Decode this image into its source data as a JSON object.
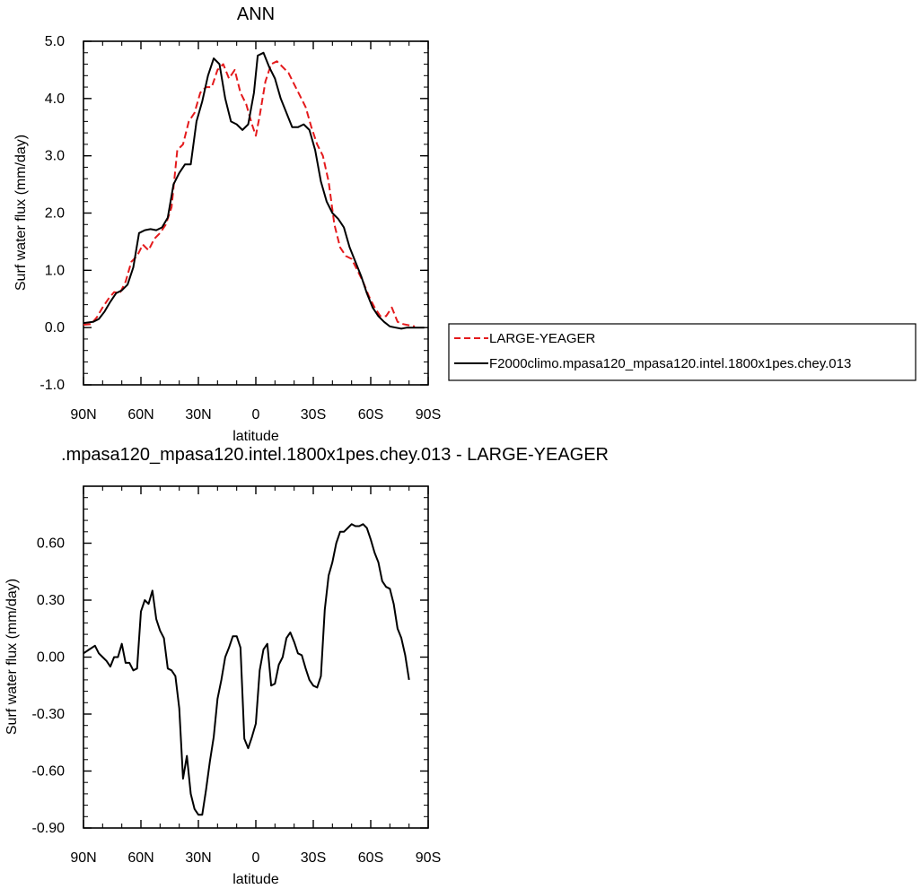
{
  "chart_data": [
    {
      "type": "line",
      "title": "ANN",
      "xlabel": "latitude",
      "ylabel": "Surf water flux (mm/day)",
      "xlim": [
        90,
        -90
      ],
      "ylim": [
        -1.0,
        5.0
      ],
      "x_ticks": [
        90,
        60,
        30,
        0,
        -30,
        -60,
        -90
      ],
      "x_tick_labels": [
        "90N",
        "60N",
        "30N",
        "0",
        "30S",
        "60S",
        "90S"
      ],
      "y_ticks": [
        -1.0,
        0.0,
        1.0,
        2.0,
        3.0,
        4.0,
        5.0
      ],
      "y_tick_labels": [
        "-1.0",
        "0.0",
        "1.0",
        "2.0",
        "3.0",
        "4.0",
        "5.0"
      ],
      "legend_position": "right",
      "series": [
        {
          "name": "LARGE-YEAGER",
          "color": "#e41a1c",
          "dash": "dashed",
          "x": [
            90,
            86,
            83,
            80,
            77,
            74,
            71,
            68,
            65,
            62,
            59,
            56,
            53,
            50,
            47,
            44,
            41,
            38,
            35,
            32,
            29,
            26,
            23,
            20,
            17,
            14,
            11,
            8,
            5,
            2,
            0,
            -2,
            -5,
            -8,
            -11,
            -14,
            -17,
            -20,
            -23,
            -26,
            -29,
            -32,
            -35,
            -38,
            -41,
            -44,
            -47,
            -50,
            -53,
            -56,
            -59,
            -62,
            -65,
            -68,
            -71,
            -74,
            -77,
            -80,
            -83
          ],
          "y": [
            0.05,
            0.06,
            0.18,
            0.35,
            0.5,
            0.62,
            0.6,
            0.8,
            1.15,
            1.25,
            1.45,
            1.35,
            1.55,
            1.65,
            1.8,
            2.1,
            3.1,
            3.2,
            3.6,
            3.75,
            4.1,
            4.2,
            4.2,
            4.5,
            4.6,
            4.35,
            4.5,
            4.1,
            3.9,
            3.55,
            3.35,
            3.7,
            4.3,
            4.6,
            4.65,
            4.55,
            4.45,
            4.25,
            4.05,
            3.85,
            3.5,
            3.2,
            3.0,
            2.55,
            1.8,
            1.4,
            1.25,
            1.2,
            1.0,
            0.8,
            0.55,
            0.35,
            0.2,
            0.2,
            0.35,
            0.1,
            0.06,
            0.04,
            0.02
          ]
        },
        {
          "name": "F2000climo.mpasa120_mpasa120.intel.1800x1pes.chey.013",
          "color": "#000000",
          "dash": "solid",
          "x": [
            90,
            85,
            82,
            79,
            76,
            73,
            70,
            67,
            64,
            61,
            58,
            55,
            52,
            49,
            46,
            43,
            40,
            37,
            34,
            31,
            28,
            25,
            22,
            19,
            16,
            13,
            10,
            7,
            4,
            1,
            -1,
            -4,
            -7,
            -10,
            -13,
            -16,
            -19,
            -22,
            -25,
            -28,
            -31,
            -34,
            -37,
            -40,
            -43,
            -46,
            -49,
            -52,
            -55,
            -58,
            -61,
            -64,
            -67,
            -70,
            -73,
            -76,
            -79,
            -82,
            -85,
            -88
          ],
          "y": [
            0.08,
            0.1,
            0.15,
            0.28,
            0.45,
            0.6,
            0.65,
            0.75,
            1.05,
            1.65,
            1.7,
            1.72,
            1.7,
            1.75,
            1.92,
            2.5,
            2.7,
            2.85,
            2.85,
            3.6,
            3.95,
            4.4,
            4.7,
            4.6,
            4.0,
            3.6,
            3.55,
            3.45,
            3.55,
            4.1,
            4.75,
            4.8,
            4.55,
            4.35,
            4.0,
            3.75,
            3.5,
            3.5,
            3.55,
            3.45,
            3.1,
            2.55,
            2.2,
            2.0,
            1.9,
            1.75,
            1.4,
            1.15,
            0.9,
            0.6,
            0.35,
            0.2,
            0.1,
            0.02,
            0.0,
            -0.02,
            0.0,
            0.0,
            0.0,
            0.0
          ]
        }
      ]
    },
    {
      "type": "line",
      "title": ".mpasa120_mpasa120.intel.1800x1pes.chey.013 - LARGE-YEAGER",
      "xlabel": "latitude",
      "ylabel": "Surf water flux (mm/day)",
      "xlim": [
        90,
        -90
      ],
      "ylim": [
        -0.9,
        0.9
      ],
      "x_ticks": [
        90,
        60,
        30,
        0,
        -30,
        -60,
        -90
      ],
      "x_tick_labels": [
        "90N",
        "60N",
        "30N",
        "0",
        "30S",
        "60S",
        "90S"
      ],
      "y_ticks": [
        -0.9,
        -0.6,
        -0.3,
        0.0,
        0.3,
        0.6
      ],
      "y_tick_labels": [
        "-0.90",
        "-0.60",
        "-0.30",
        "0.00",
        "0.30",
        "0.60"
      ],
      "series": [
        {
          "name": "",
          "color": "#000000",
          "dash": "solid",
          "x": [
            90,
            87,
            84,
            82,
            80,
            78,
            76,
            74,
            72,
            70,
            68,
            66,
            64,
            62,
            60,
            58,
            56,
            54,
            52,
            50,
            48,
            46,
            44,
            42,
            40,
            38,
            36,
            34,
            32,
            30,
            28,
            26,
            24,
            22,
            20,
            18,
            16,
            14,
            12,
            10,
            8,
            6,
            4,
            2,
            0,
            -2,
            -4,
            -6,
            -8,
            -10,
            -12,
            -14,
            -16,
            -18,
            -20,
            -22,
            -24,
            -26,
            -28,
            -30,
            -32,
            -34,
            -36,
            -38,
            -40,
            -42,
            -44,
            -46,
            -48,
            -50,
            -52,
            -54,
            -56,
            -58,
            -60,
            -62,
            -64,
            -66,
            -68,
            -70,
            -72,
            -74,
            -76,
            -78,
            -80
          ],
          "y": [
            0.02,
            0.04,
            0.06,
            0.02,
            0.0,
            -0.02,
            -0.05,
            0.0,
            0.0,
            0.07,
            -0.03,
            -0.03,
            -0.07,
            -0.06,
            0.24,
            0.3,
            0.28,
            0.35,
            0.2,
            0.14,
            0.1,
            -0.06,
            -0.07,
            -0.1,
            -0.27,
            -0.64,
            -0.52,
            -0.72,
            -0.8,
            -0.83,
            -0.83,
            -0.7,
            -0.55,
            -0.42,
            -0.22,
            -0.12,
            0.0,
            0.05,
            0.11,
            0.11,
            0.05,
            -0.43,
            -0.48,
            -0.42,
            -0.35,
            -0.07,
            0.04,
            0.07,
            -0.15,
            -0.14,
            -0.04,
            0.0,
            0.1,
            0.13,
            0.08,
            0.02,
            0.01,
            -0.06,
            -0.12,
            -0.15,
            -0.16,
            -0.1,
            0.25,
            0.43,
            0.5,
            0.6,
            0.66,
            0.66,
            0.68,
            0.7,
            0.69,
            0.69,
            0.7,
            0.68,
            0.62,
            0.55,
            0.5,
            0.4,
            0.37,
            0.36,
            0.28,
            0.15,
            0.1,
            0.01,
            -0.12
          ]
        }
      ]
    }
  ]
}
